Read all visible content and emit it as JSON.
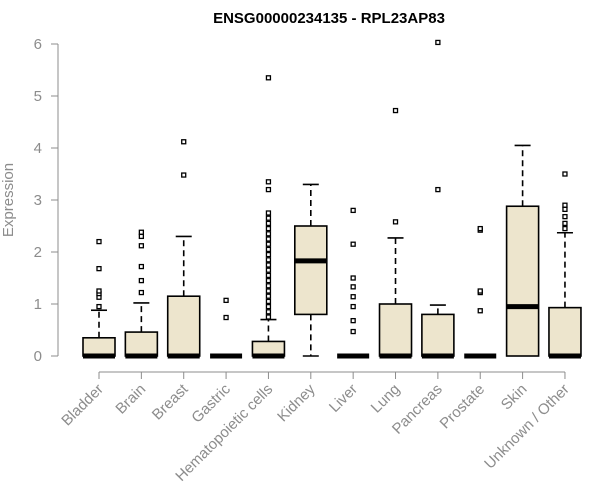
{
  "chart_data": {
    "type": "box",
    "title": "ENSG00000234135 - RPL23AP83",
    "xlabel": "",
    "ylabel": "Expression",
    "ylim": [
      0,
      6
    ],
    "yticks": [
      0,
      1,
      2,
      3,
      4,
      5,
      6
    ],
    "grid": false,
    "legend": "none",
    "box_fill": "#ede5cd",
    "box_stroke": "#000000",
    "axis_color": "#8c8c8c",
    "categories": [
      "Bladder",
      "Brain",
      "Breast",
      "Gastric",
      "Hematopoietic cells",
      "Kidney",
      "Liver",
      "Lung",
      "Pancreas",
      "Prostate",
      "Skin",
      "Unknown / Other"
    ],
    "boxes": [
      {
        "category": "Bladder",
        "whisker_low": 0,
        "q1": 0,
        "median": 0,
        "q3": 0.35,
        "whisker_high": 0.88,
        "outliers": [
          0.95,
          1.13,
          1.2,
          1.25,
          1.68,
          2.2
        ]
      },
      {
        "category": "Brain",
        "whisker_low": 0,
        "q1": 0,
        "median": 0,
        "q3": 0.46,
        "whisker_high": 1.02,
        "outliers": [
          1.22,
          1.45,
          1.72,
          2.12,
          2.3,
          2.38
        ]
      },
      {
        "category": "Breast",
        "whisker_low": 0,
        "q1": 0,
        "median": 0,
        "q3": 1.15,
        "whisker_high": 2.3,
        "outliers": [
          3.48,
          4.12
        ]
      },
      {
        "category": "Gastric",
        "whisker_low": 0,
        "q1": 0,
        "median": 0,
        "q3": 0,
        "whisker_high": 0,
        "outliers": [
          0.74,
          1.07
        ]
      },
      {
        "category": "Hematopoietic cells",
        "whisker_low": 0,
        "q1": 0,
        "median": 0,
        "q3": 0.28,
        "whisker_high": 0.7,
        "outliers": [
          0.75,
          0.85,
          0.95,
          1.05,
          1.15,
          1.25,
          1.35,
          1.45,
          1.55,
          1.65,
          1.75,
          1.85,
          1.95,
          2.05,
          2.15,
          2.25,
          2.35,
          2.45,
          2.55,
          2.65,
          2.75,
          3.2,
          3.35,
          5.35
        ]
      },
      {
        "category": "Kidney",
        "whisker_low": 0,
        "q1": 0.8,
        "median": 1.83,
        "q3": 2.5,
        "whisker_high": 3.3,
        "outliers": []
      },
      {
        "category": "Liver",
        "whisker_low": 0,
        "q1": 0,
        "median": 0,
        "q3": 0,
        "whisker_high": 0,
        "outliers": [
          0.47,
          0.68,
          0.95,
          1.14,
          1.33,
          1.5,
          2.15,
          2.8
        ]
      },
      {
        "category": "Lung",
        "whisker_low": 0,
        "q1": 0,
        "median": 0,
        "q3": 1.0,
        "whisker_high": 2.27,
        "outliers": [
          2.58,
          4.72
        ]
      },
      {
        "category": "Pancreas",
        "whisker_low": 0,
        "q1": 0,
        "median": 0,
        "q3": 0.8,
        "whisker_high": 0.98,
        "outliers": [
          3.2,
          6.03
        ]
      },
      {
        "category": "Prostate",
        "whisker_low": 0,
        "q1": 0,
        "median": 0,
        "q3": 0,
        "whisker_high": 0,
        "outliers": [
          0.87,
          1.22,
          1.25,
          2.42,
          2.45
        ]
      },
      {
        "category": "Skin",
        "whisker_low": 0,
        "q1": 0,
        "median": 0.95,
        "q3": 2.88,
        "whisker_high": 4.05,
        "outliers": []
      },
      {
        "category": "Unknown / Other",
        "whisker_low": 0,
        "q1": 0,
        "median": 0,
        "q3": 0.93,
        "whisker_high": 2.37,
        "outliers": [
          2.45,
          2.55,
          2.68,
          2.82,
          2.9,
          3.5
        ]
      }
    ]
  }
}
